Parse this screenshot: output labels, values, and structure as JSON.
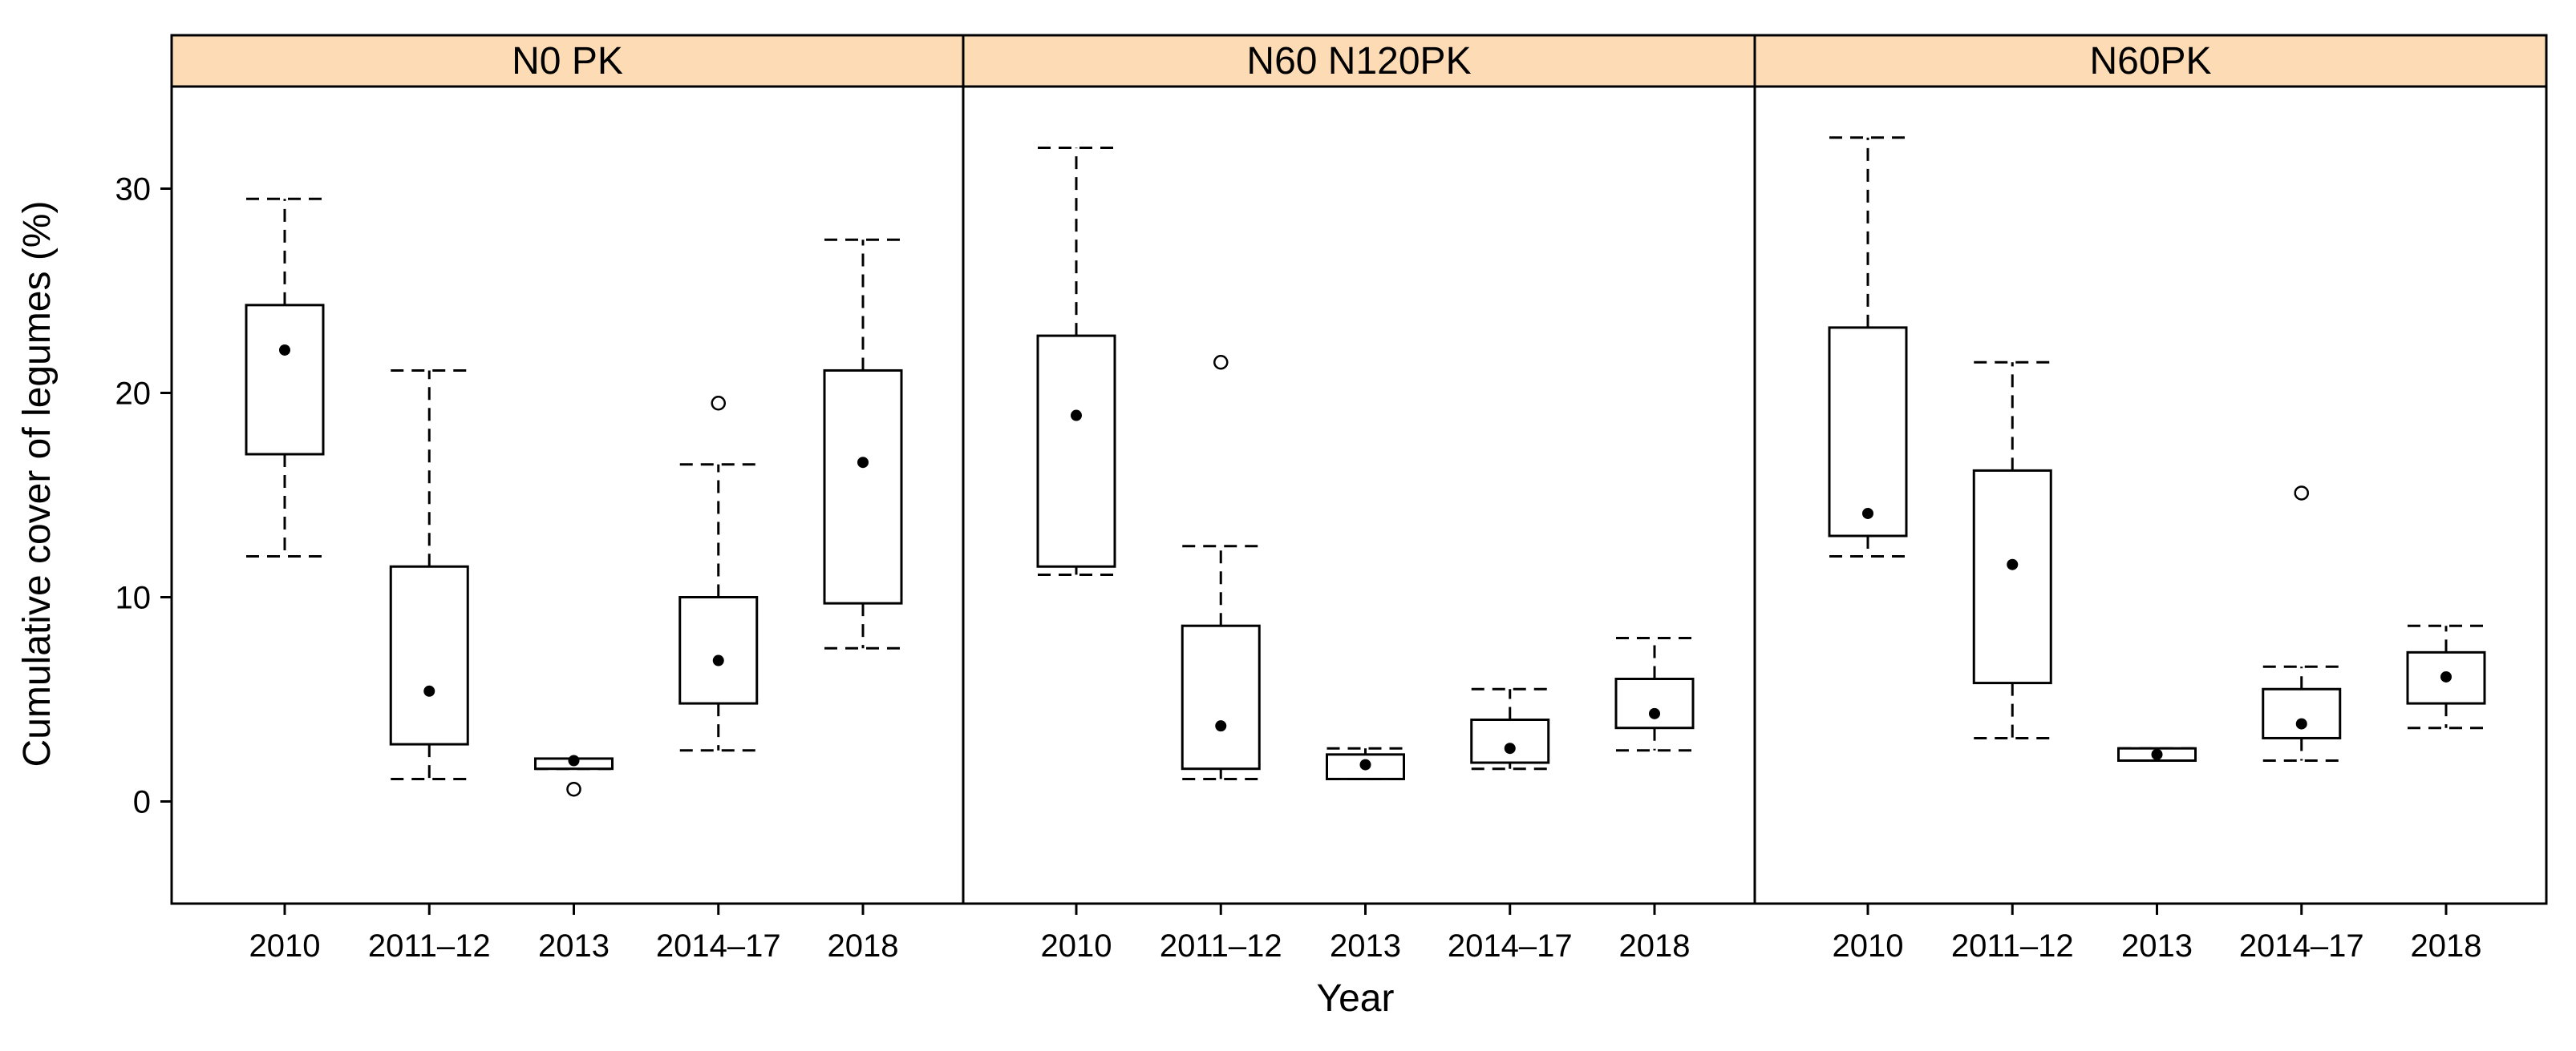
{
  "chart_data": {
    "type": "boxplot",
    "xlabel": "Year",
    "ylabel": "Cumulative cover of legumes (%)",
    "ylim": [
      -5,
      35
    ],
    "yticks": [
      0,
      10,
      20,
      30
    ],
    "categories": [
      "2010",
      "2011–12",
      "2013",
      "2014–17",
      "2018"
    ],
    "strip_color": "#FDDBB5",
    "grid": false,
    "panels": [
      {
        "name": "N0  PK",
        "boxes": [
          {
            "category": "2010",
            "lower_whisker": 12,
            "q1": 17,
            "q3": 24.3,
            "upper_whisker": 29.5,
            "mean": 22.1,
            "outliers": []
          },
          {
            "category": "2011–12",
            "lower_whisker": 1.1,
            "q1": 2.8,
            "q3": 11.5,
            "upper_whisker": 21.1,
            "mean": 5.4,
            "outliers": []
          },
          {
            "category": "2013",
            "lower_whisker": 1.6,
            "q1": 1.6,
            "q3": 2.1,
            "upper_whisker": 2.1,
            "mean": 2.0,
            "outliers": [
              0.6
            ]
          },
          {
            "category": "2014–17",
            "lower_whisker": 2.5,
            "q1": 4.8,
            "q3": 10,
            "upper_whisker": 16.5,
            "mean": 6.9,
            "outliers": [
              19.5
            ]
          },
          {
            "category": "2018",
            "lower_whisker": 7.5,
            "q1": 9.7,
            "q3": 21.1,
            "upper_whisker": 27.5,
            "mean": 16.6,
            "outliers": []
          }
        ]
      },
      {
        "name": "N60  N120PK",
        "boxes": [
          {
            "category": "2010",
            "lower_whisker": 11.1,
            "q1": 11.5,
            "q3": 22.8,
            "upper_whisker": 32,
            "mean": 18.9,
            "outliers": []
          },
          {
            "category": "2011–12",
            "lower_whisker": 1.1,
            "q1": 1.6,
            "q3": 8.6,
            "upper_whisker": 12.5,
            "mean": 3.7,
            "outliers": [
              21.5
            ]
          },
          {
            "category": "2013",
            "lower_whisker": 1.1,
            "q1": 1.1,
            "q3": 2.3,
            "upper_whisker": 2.6,
            "mean": 1.8,
            "outliers": []
          },
          {
            "category": "2014–17",
            "lower_whisker": 1.6,
            "q1": 1.9,
            "q3": 4.0,
            "upper_whisker": 5.5,
            "mean": 2.6,
            "outliers": []
          },
          {
            "category": "2018",
            "lower_whisker": 2.5,
            "q1": 3.6,
            "q3": 6.0,
            "upper_whisker": 8.0,
            "mean": 4.3,
            "outliers": []
          }
        ]
      },
      {
        "name": "N60PK",
        "boxes": [
          {
            "category": "2010",
            "lower_whisker": 12,
            "q1": 13,
            "q3": 23.2,
            "upper_whisker": 32.5,
            "mean": 14.1,
            "outliers": []
          },
          {
            "category": "2011–12",
            "lower_whisker": 3.1,
            "q1": 5.8,
            "q3": 16.2,
            "upper_whisker": 21.5,
            "mean": 11.6,
            "outliers": []
          },
          {
            "category": "2013",
            "lower_whisker": 2.0,
            "q1": 2.0,
            "q3": 2.6,
            "upper_whisker": 2.6,
            "mean": 2.3,
            "outliers": []
          },
          {
            "category": "2014–17",
            "lower_whisker": 2.0,
            "q1": 3.1,
            "q3": 5.5,
            "upper_whisker": 6.6,
            "mean": 3.8,
            "outliers": [
              15.1
            ]
          },
          {
            "category": "2018",
            "lower_whisker": 3.6,
            "q1": 4.8,
            "q3": 7.3,
            "upper_whisker": 8.6,
            "mean": 6.1,
            "outliers": []
          }
        ]
      }
    ]
  }
}
